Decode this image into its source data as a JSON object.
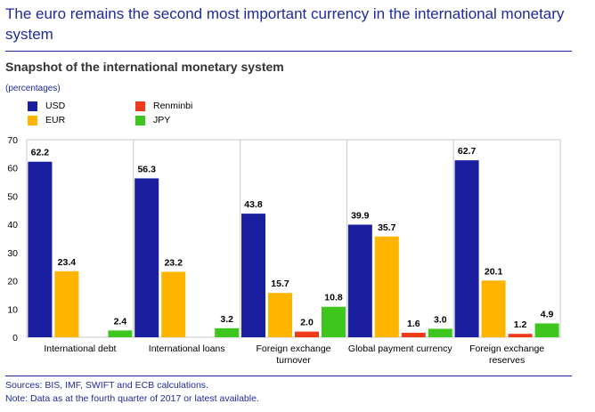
{
  "headline": "The euro remains the second most important currency in the international monetary system",
  "chart_data": {
    "type": "bar",
    "title": "Snapshot of the international monetary system",
    "units_label": "(percentages)",
    "categories": [
      [
        "International debt"
      ],
      [
        "International loans"
      ],
      [
        "Foreign exchange",
        "turnover"
      ],
      [
        "Global payment currency"
      ],
      [
        "Foreign exchange",
        "reserves"
      ]
    ],
    "series": [
      {
        "name": "USD",
        "color": "#1a1fa0",
        "values": [
          62.2,
          56.3,
          43.8,
          39.9,
          62.7
        ],
        "labels": [
          "62.2",
          "56.3",
          "43.8",
          "39.9",
          "62.7"
        ]
      },
      {
        "name": "EUR",
        "color": "#ffb400",
        "values": [
          23.4,
          23.2,
          15.7,
          35.7,
          20.1
        ],
        "labels": [
          "23.4",
          "23.2",
          "15.7",
          "35.7",
          "20.1"
        ]
      },
      {
        "name": "Renminbi",
        "color": "#ef3b1a",
        "values": [
          0,
          0,
          2.0,
          1.6,
          1.2
        ],
        "labels": [
          "",
          "",
          "2.0",
          "1.6",
          "1.2"
        ]
      },
      {
        "name": "JPY",
        "color": "#3fc61e",
        "values": [
          2.4,
          3.2,
          10.8,
          3.0,
          4.9
        ],
        "labels": [
          "2.4",
          "3.2",
          "10.8",
          "3.0",
          "4.9"
        ]
      }
    ],
    "ylim": [
      0,
      70
    ],
    "yticks": [
      0,
      10,
      20,
      30,
      40,
      50,
      60,
      70
    ],
    "legend_position": "top-left",
    "grid": false
  },
  "footer": {
    "sources": "Sources: BIS, IMF, SWIFT and ECB calculations.",
    "note": "Note: Data as at the fourth quarter of 2017 or latest available."
  }
}
